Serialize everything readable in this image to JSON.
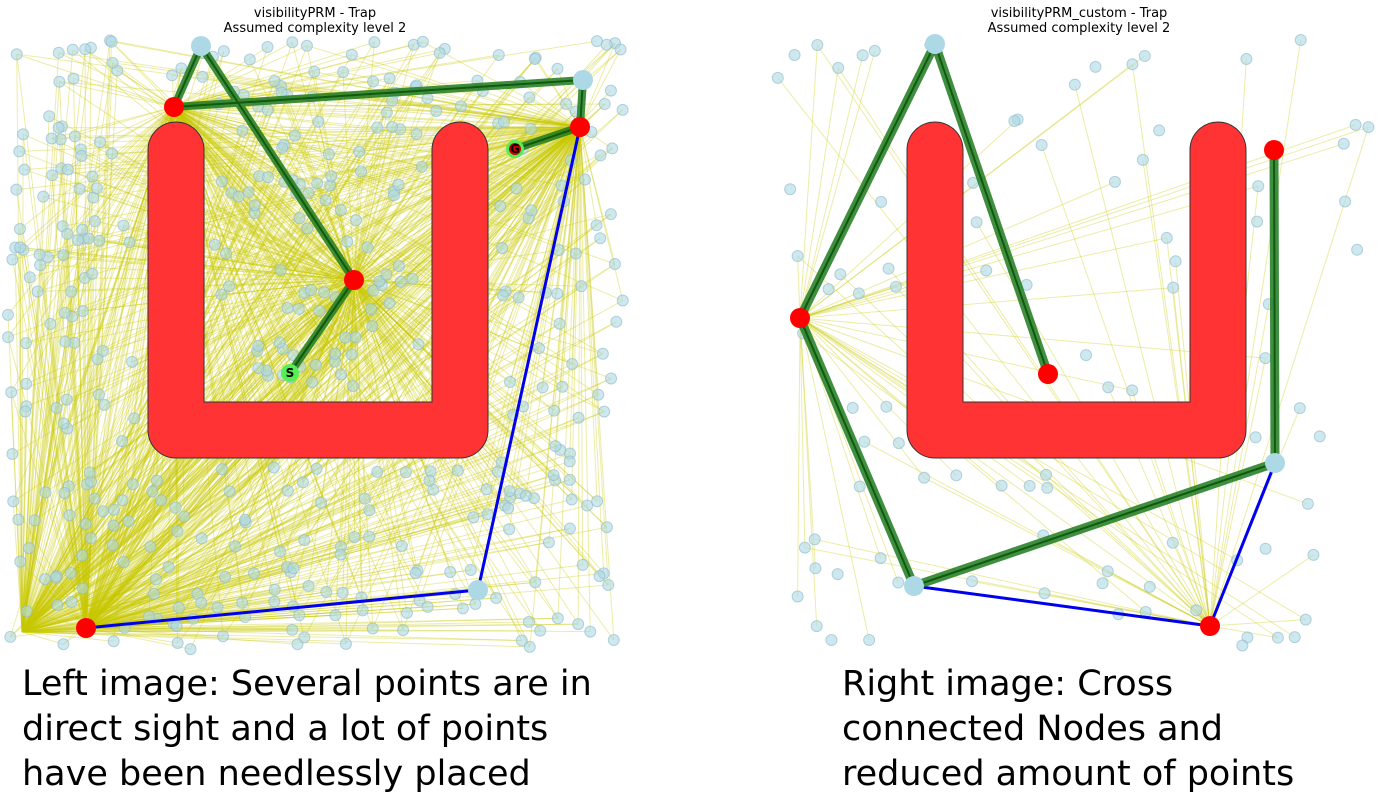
{
  "left": {
    "title_line1": "visibilityPRM - Trap",
    "title_line2": "Assumed complexity level 2",
    "caption_lines": [
      "Left image: Several points are in",
      "direct sight and a lot of points",
      "have been needlessly placed"
    ],
    "start_label": "S",
    "goal_label": "G"
  },
  "right": {
    "title_line1": "visibilityPRM_custom - Trap",
    "title_line2": "Assumed complexity level 2",
    "caption_lines": [
      "Right image: Cross",
      "connected Nodes and",
      "reduced amount of points"
    ]
  },
  "colors": {
    "obstacle": "#ff3333",
    "sample_node": "#add8e6",
    "guard_node": "#ff0000",
    "edge": "#c8c800",
    "solution_path": "#1e7a1e",
    "connection_path": "#0000ee",
    "start_goal": "#55ee55"
  }
}
